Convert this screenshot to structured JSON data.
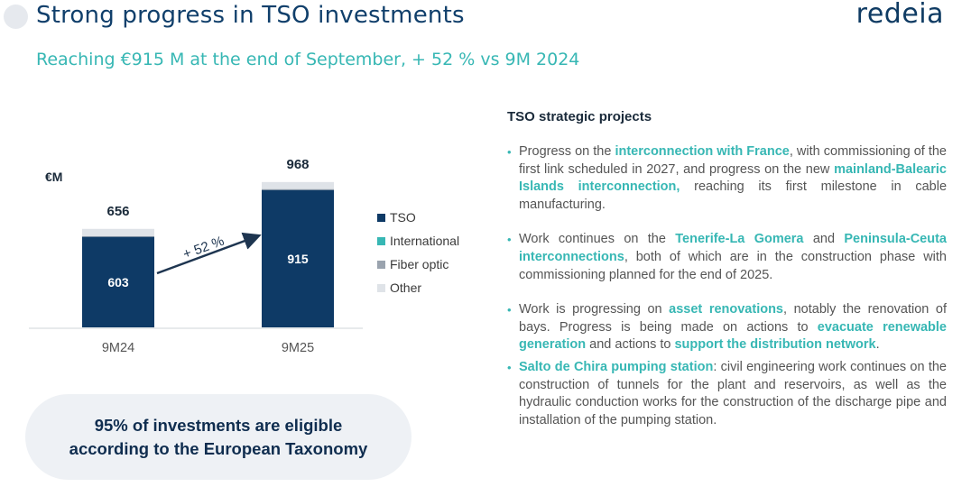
{
  "header": {
    "title": "Strong progress in TSO investments",
    "logo": "redeia",
    "subtitle": "Reaching €915 M at the end of September, + 52 % vs 9M 2024"
  },
  "colors": {
    "tso": "#0e3a66",
    "international": "#37b7b4",
    "fiber": "#9aa3ae",
    "other": "#dfe3e8",
    "accent": "#37b7b4"
  },
  "chart_data": {
    "type": "bar",
    "stacked": true,
    "unit_label": "€M",
    "categories": [
      "9M24",
      "9M25"
    ],
    "series": [
      {
        "name": "TSO",
        "values": [
          603,
          915
        ]
      },
      {
        "name": "International",
        "values": [
          0,
          0
        ]
      },
      {
        "name": "Fiber optic",
        "values": [
          5,
          6
        ]
      },
      {
        "name": "Other",
        "values": [
          48,
          47
        ]
      }
    ],
    "totals": [
      656,
      968
    ],
    "growth_label": "+ 52 %",
    "ylim": [
      0,
      1000
    ],
    "grid": false,
    "legend_position": "right"
  },
  "taxonomy": {
    "line1": "95% of investments are eligible",
    "line2": "according to the European Taxonomy"
  },
  "projects": {
    "heading": "TSO strategic projects",
    "items": [
      {
        "parts": [
          {
            "t": "Progress on the ",
            "h": false
          },
          {
            "t": "interconnection with France",
            "h": true
          },
          {
            "t": ", with commissioning of the first link scheduled in 2027, and progress on the new ",
            "h": false
          },
          {
            "t": "mainland-Balearic Islands interconnection,",
            "h": true
          },
          {
            "t": " reaching its first milestone in cable manufacturing.",
            "h": false
          }
        ]
      },
      {
        "parts": [
          {
            "t": "Work continues on the ",
            "h": false
          },
          {
            "t": "Tenerife-La Gomera",
            "h": true
          },
          {
            "t": " and ",
            "h": false
          },
          {
            "t": "Peninsula-Ceuta interconnections",
            "h": true
          },
          {
            "t": ", both of which are in the construction phase with commissioning planned for the end of 2025.",
            "h": false
          }
        ]
      },
      {
        "parts": [
          {
            "t": "Work is progressing on ",
            "h": false
          },
          {
            "t": "asset renovations",
            "h": true
          },
          {
            "t": ", notably the renovation of bays. Progress is being made on actions to ",
            "h": false
          },
          {
            "t": "evacuate renewable generation",
            "h": true
          },
          {
            "t": " and actions to ",
            "h": false
          },
          {
            "t": "support the distribution network",
            "h": true
          },
          {
            "t": ".",
            "h": false
          }
        ]
      },
      {
        "parts": [
          {
            "t": "Salto de Chira pumping station",
            "h": true
          },
          {
            "t": ": civil engineering work continues on the construction of tunnels for the plant and reservoirs, as well as the hydraulic conduction works for the construction of the discharge pipe and installation of the pumping station.",
            "h": false
          }
        ]
      }
    ]
  }
}
